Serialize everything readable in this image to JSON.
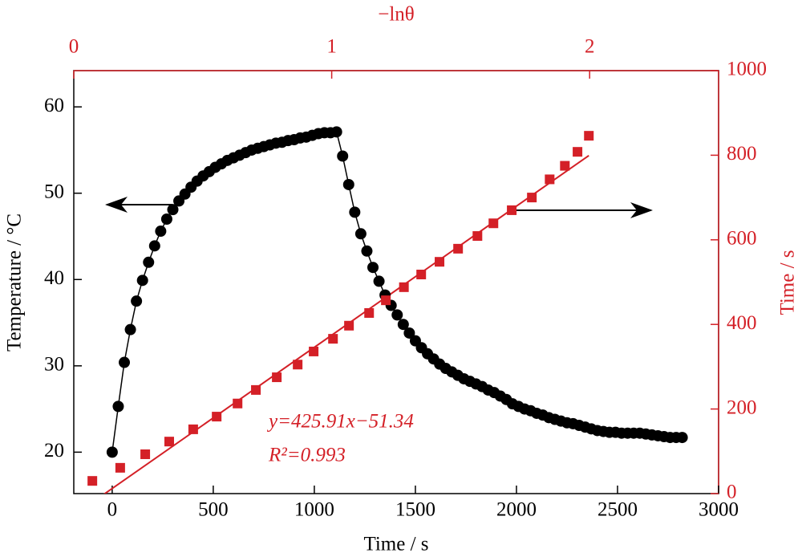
{
  "chart_data": {
    "type": "dual-axis-scatter",
    "xlabel": "Time / s",
    "ylabel": "Temperature / °C",
    "x2label": "−lnθ",
    "y2label": "Time / s",
    "xlim": [
      -190,
      3000
    ],
    "xticks": [
      0,
      500,
      1000,
      1500,
      2000,
      2500,
      3000
    ],
    "ylim": [
      15.2,
      64.2
    ],
    "yticks": [
      20,
      30,
      40,
      50,
      60
    ],
    "x2lim": [
      0,
      2.5
    ],
    "x2ticks": [
      0,
      1,
      2
    ],
    "y2lim": [
      0,
      1000
    ],
    "y2ticks": [
      0,
      200,
      400,
      600,
      800,
      1000
    ],
    "series": [
      {
        "color": "#000000",
        "x": [
          0,
          30,
          60,
          90,
          120,
          150,
          180,
          210,
          240,
          270,
          300,
          330,
          360,
          390,
          420,
          450,
          480,
          510,
          540,
          570,
          600,
          630,
          660,
          690,
          720,
          750,
          780,
          810,
          840,
          870,
          900,
          930,
          960,
          990,
          1020,
          1050,
          1080,
          1110,
          1140,
          1170,
          1200,
          1230,
          1260,
          1290,
          1320,
          1350,
          1380,
          1410,
          1440,
          1470,
          1500,
          1530,
          1560,
          1590,
          1620,
          1650,
          1680,
          1710,
          1740,
          1770,
          1800,
          1830,
          1860,
          1890,
          1920,
          1950,
          1980,
          2010,
          2040,
          2070,
          2100,
          2130,
          2160,
          2190,
          2220,
          2250,
          2280,
          2310,
          2340,
          2370,
          2400,
          2430,
          2460,
          2490,
          2520,
          2550,
          2580,
          2610,
          2640,
          2670,
          2700,
          2730,
          2760,
          2790,
          2820
        ],
        "values": [
          20.0,
          25.3,
          30.4,
          34.2,
          37.5,
          39.9,
          42.0,
          43.9,
          45.6,
          47.0,
          48.1,
          49.1,
          49.9,
          50.7,
          51.4,
          52.0,
          52.5,
          53.0,
          53.4,
          53.8,
          54.1,
          54.4,
          54.7,
          55.0,
          55.2,
          55.4,
          55.6,
          55.8,
          55.9,
          56.1,
          56.2,
          56.4,
          56.5,
          56.7,
          56.9,
          57.0,
          57.0,
          57.1,
          54.3,
          51.0,
          47.8,
          45.3,
          43.3,
          41.4,
          39.8,
          38.2,
          37.0,
          35.9,
          34.8,
          33.8,
          32.9,
          32.1,
          31.4,
          30.8,
          30.2,
          29.7,
          29.3,
          28.9,
          28.5,
          28.2,
          27.9,
          27.6,
          27.2,
          26.9,
          26.5,
          26.1,
          25.6,
          25.3,
          25.0,
          24.8,
          24.5,
          24.3,
          24.0,
          23.8,
          23.6,
          23.4,
          23.3,
          23.1,
          22.9,
          22.7,
          22.5,
          22.4,
          22.3,
          22.3,
          22.2,
          22.2,
          22.2,
          22.2,
          22.1,
          22.0,
          21.9,
          21.8,
          21.7,
          21.7,
          21.7
        ]
      },
      {
        "color": "#d42027",
        "axis": "y2",
        "x": [
          0.072,
          0.18,
          0.277,
          0.37,
          0.463,
          0.554,
          0.635,
          0.706,
          0.787,
          0.868,
          0.93,
          1.005,
          1.067,
          1.145,
          1.21,
          1.28,
          1.347,
          1.418,
          1.49,
          1.565,
          1.627,
          1.698,
          1.776,
          1.845,
          1.904,
          1.953,
          1.997
        ],
        "values": [
          30,
          61,
          93,
          123,
          152,
          182,
          213,
          245,
          275,
          305,
          336,
          366,
          397,
          427,
          457,
          488,
          518,
          548,
          579,
          609,
          639,
          670,
          700,
          743,
          775,
          808,
          846
        ]
      }
    ],
    "fit_slope": 425.91,
    "fit_intercept": -51.34,
    "annotations": [
      "y=425.91x−51.34",
      "R²=0.993"
    ]
  }
}
